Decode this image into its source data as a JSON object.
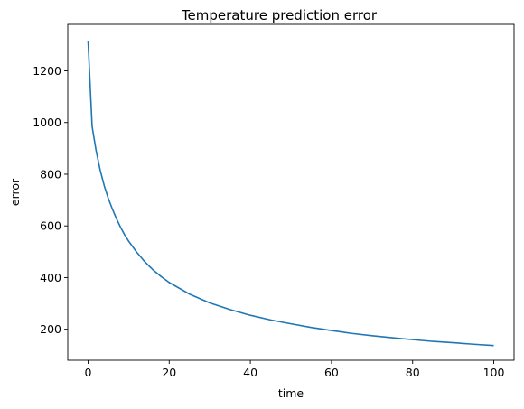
{
  "chart_data": {
    "type": "line",
    "title": "Temperature prediction error",
    "xlabel": "time",
    "ylabel": "error",
    "xlim": [
      -5,
      105
    ],
    "ylim": [
      80,
      1380
    ],
    "xticks": [
      0,
      20,
      40,
      60,
      80,
      100
    ],
    "yticks": [
      200,
      400,
      600,
      800,
      1000,
      1200
    ],
    "grid": false,
    "legend": "none",
    "series": [
      {
        "color": "#1f77b4",
        "x": [
          0,
          1,
          2,
          3,
          4,
          5,
          6,
          7,
          8,
          9,
          10,
          12,
          14,
          16,
          18,
          20,
          25,
          30,
          35,
          40,
          45,
          50,
          55,
          60,
          65,
          70,
          75,
          80,
          85,
          90,
          95,
          100
        ],
        "y": [
          1317,
          985,
          890,
          815,
          755,
          706,
          665,
          628,
          595,
          566,
          541,
          498,
          461,
          430,
          404,
          381,
          336,
          302,
          276,
          254,
          236,
          221,
          207,
          195,
          184,
          175,
          167,
          160,
          153,
          148,
          142,
          137
        ]
      }
    ]
  }
}
